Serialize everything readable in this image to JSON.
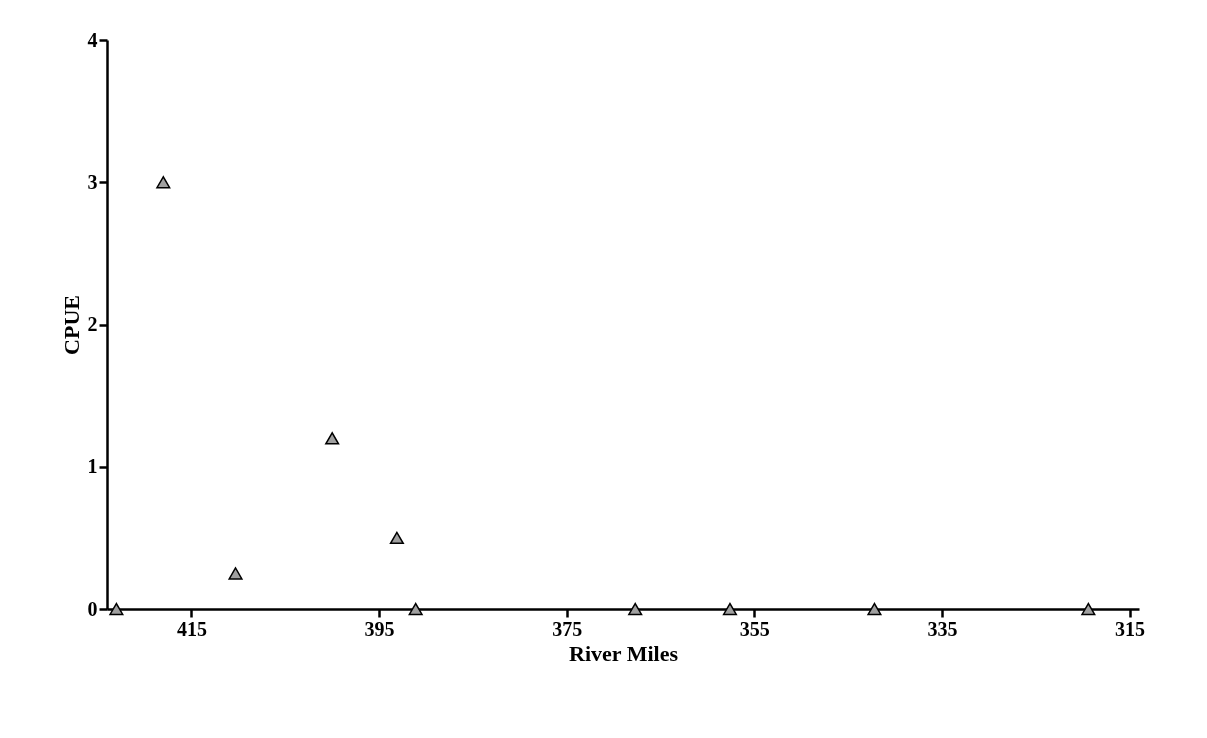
{
  "chart_data": {
    "type": "scatter",
    "xlabel": "River Miles",
    "ylabel": "CPUE",
    "x": [
      423,
      418,
      410.3,
      400,
      393.1,
      391.1,
      367.7,
      357.6,
      342.2,
      319.4
    ],
    "series": [
      {
        "color": "#a0a0a0",
        "values": [
          0,
          3,
          0.25,
          1.2,
          0.5,
          0,
          0,
          0,
          0,
          0
        ]
      }
    ],
    "xlim": [
      424,
      314
    ],
    "xticks": [
      415,
      395,
      375,
      355,
      335,
      315
    ],
    "ylim": [
      0,
      4
    ],
    "yticks": [
      0,
      1,
      2,
      3,
      4
    ],
    "grid": false,
    "marker": "triangle"
  }
}
